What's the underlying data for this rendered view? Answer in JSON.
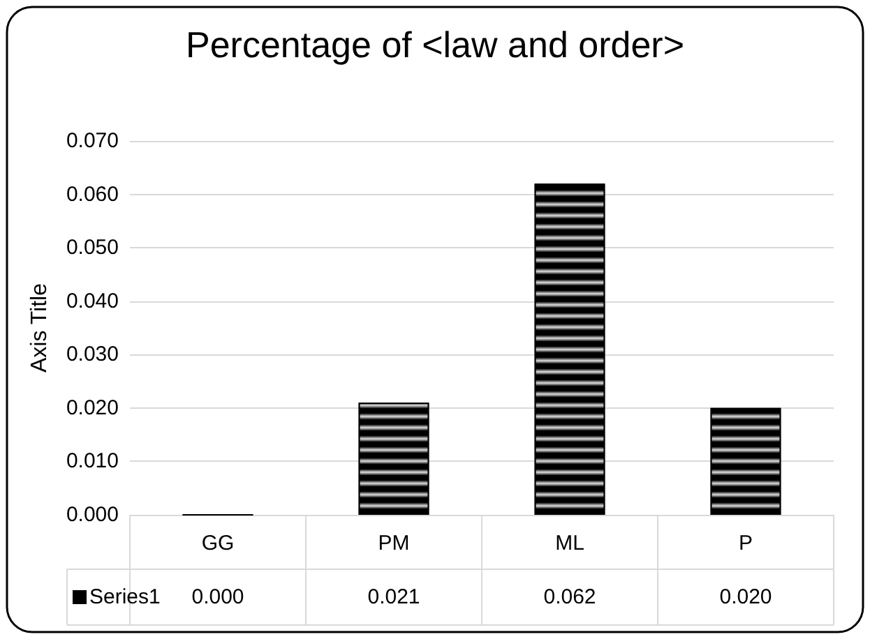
{
  "chart_data": {
    "type": "bar",
    "title": "Percentage of <law and order>",
    "ylabel": "Axis Title",
    "categories": [
      "GG",
      "PM",
      "ML",
      "P"
    ],
    "series": [
      {
        "name": "Series1",
        "color": "#000000",
        "values": [
          0.0,
          0.021,
          0.062,
          0.02
        ],
        "value_labels": [
          "0.000",
          "0.021",
          "0.062",
          "0.020"
        ]
      }
    ],
    "ylim": [
      0,
      0.07
    ],
    "yticks": [
      {
        "value": 0,
        "label": "0.000"
      },
      {
        "value": 0.01,
        "label": "0.010"
      },
      {
        "value": 0.02,
        "label": "0.020"
      },
      {
        "value": 0.03,
        "label": "0.030"
      },
      {
        "value": 0.04,
        "label": "0.040"
      },
      {
        "value": 0.05,
        "label": "0.050"
      },
      {
        "value": 0.06,
        "label": "0.060"
      },
      {
        "value": 0.07,
        "label": "0.070"
      }
    ],
    "grid": "y"
  }
}
